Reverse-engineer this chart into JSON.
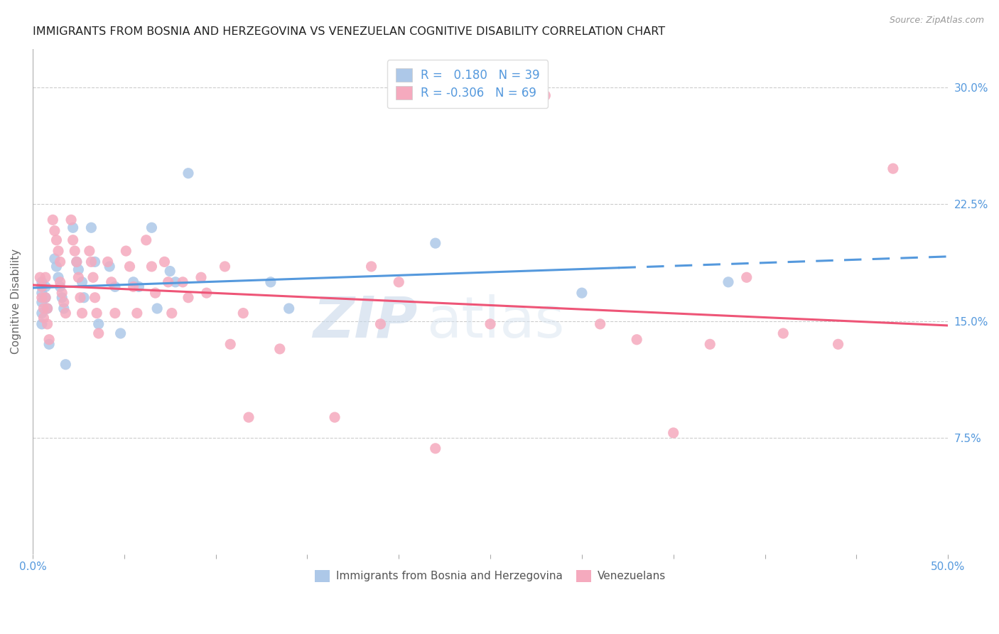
{
  "title": "IMMIGRANTS FROM BOSNIA AND HERZEGOVINA VS VENEZUELAN COGNITIVE DISABILITY CORRELATION CHART",
  "source": "Source: ZipAtlas.com",
  "ylabel": "Cognitive Disability",
  "ytick_labels": [
    "7.5%",
    "15.0%",
    "22.5%",
    "30.0%"
  ],
  "ytick_values": [
    0.075,
    0.15,
    0.225,
    0.3
  ],
  "xtick_values": [
    0.0,
    0.05,
    0.1,
    0.15,
    0.2,
    0.25,
    0.3,
    0.35,
    0.4,
    0.45,
    0.5
  ],
  "xmin": 0.0,
  "xmax": 0.5,
  "ymin": 0.0,
  "ymax": 0.325,
  "legend_label_blue": "Immigrants from Bosnia and Herzegovina",
  "legend_label_pink": "Venezuelans",
  "r_blue": 0.18,
  "n_blue": 39,
  "r_pink": -0.306,
  "n_pink": 69,
  "blue_color": "#adc8e8",
  "pink_color": "#f5aabe",
  "blue_line_color": "#5599dd",
  "pink_line_color": "#ee5577",
  "title_color": "#222222",
  "axis_label_color": "#5599dd",
  "background_color": "#ffffff",
  "watermark_zip": "ZIP",
  "watermark_atlas": "atlas",
  "blue_scatter_x": [
    0.005,
    0.005,
    0.005,
    0.005,
    0.005,
    0.007,
    0.007,
    0.008,
    0.009,
    0.012,
    0.013,
    0.014,
    0.015,
    0.016,
    0.017,
    0.018,
    0.022,
    0.024,
    0.025,
    0.027,
    0.028,
    0.032,
    0.034,
    0.036,
    0.042,
    0.045,
    0.048,
    0.055,
    0.058,
    0.065,
    0.068,
    0.075,
    0.078,
    0.085,
    0.13,
    0.14,
    0.22,
    0.3,
    0.38
  ],
  "blue_scatter_y": [
    0.175,
    0.168,
    0.162,
    0.155,
    0.148,
    0.172,
    0.165,
    0.158,
    0.135,
    0.19,
    0.185,
    0.178,
    0.172,
    0.165,
    0.158,
    0.122,
    0.21,
    0.188,
    0.183,
    0.175,
    0.165,
    0.21,
    0.188,
    0.148,
    0.185,
    0.172,
    0.142,
    0.175,
    0.172,
    0.21,
    0.158,
    0.182,
    0.175,
    0.245,
    0.175,
    0.158,
    0.2,
    0.168,
    0.175
  ],
  "pink_scatter_x": [
    0.004,
    0.005,
    0.005,
    0.006,
    0.006,
    0.007,
    0.007,
    0.008,
    0.008,
    0.009,
    0.011,
    0.012,
    0.013,
    0.014,
    0.015,
    0.015,
    0.016,
    0.017,
    0.018,
    0.021,
    0.022,
    0.023,
    0.024,
    0.025,
    0.026,
    0.027,
    0.031,
    0.032,
    0.033,
    0.034,
    0.035,
    0.036,
    0.041,
    0.043,
    0.045,
    0.051,
    0.053,
    0.055,
    0.057,
    0.062,
    0.065,
    0.067,
    0.072,
    0.074,
    0.076,
    0.082,
    0.085,
    0.092,
    0.095,
    0.105,
    0.108,
    0.115,
    0.118,
    0.135,
    0.165,
    0.185,
    0.19,
    0.2,
    0.22,
    0.25,
    0.28,
    0.31,
    0.33,
    0.35,
    0.37,
    0.39,
    0.41,
    0.44,
    0.47
  ],
  "pink_scatter_y": [
    0.178,
    0.172,
    0.165,
    0.158,
    0.152,
    0.178,
    0.165,
    0.158,
    0.148,
    0.138,
    0.215,
    0.208,
    0.202,
    0.195,
    0.188,
    0.175,
    0.168,
    0.162,
    0.155,
    0.215,
    0.202,
    0.195,
    0.188,
    0.178,
    0.165,
    0.155,
    0.195,
    0.188,
    0.178,
    0.165,
    0.155,
    0.142,
    0.188,
    0.175,
    0.155,
    0.195,
    0.185,
    0.172,
    0.155,
    0.202,
    0.185,
    0.168,
    0.188,
    0.175,
    0.155,
    0.175,
    0.165,
    0.178,
    0.168,
    0.185,
    0.135,
    0.155,
    0.088,
    0.132,
    0.088,
    0.185,
    0.148,
    0.175,
    0.068,
    0.148,
    0.295,
    0.148,
    0.138,
    0.078,
    0.135,
    0.178,
    0.142,
    0.135,
    0.248
  ]
}
